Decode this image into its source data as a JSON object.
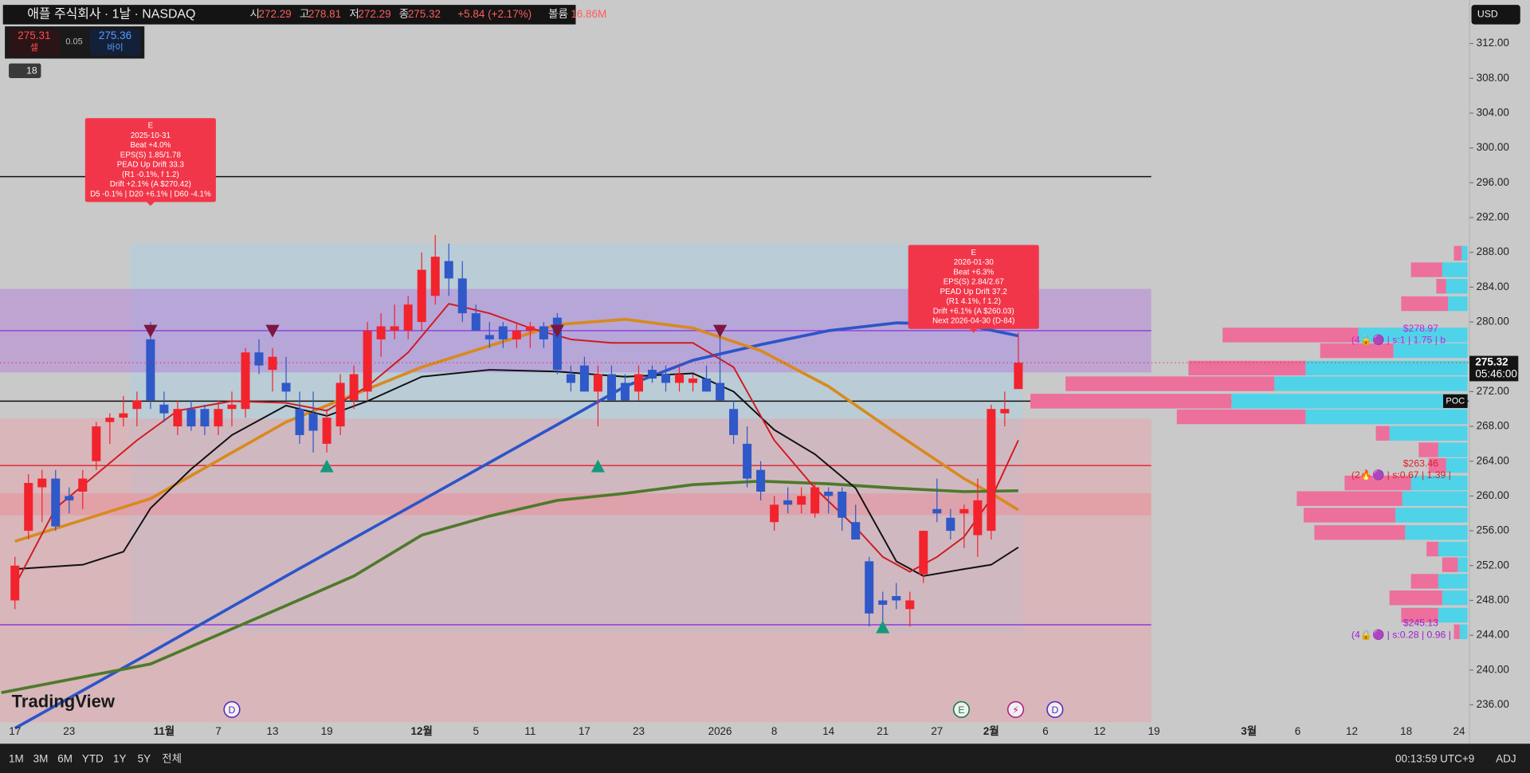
{
  "chart_data": {
    "type": "candlestick",
    "header": {
      "title": "애플 주식회사 · 1날 · NASDAQ",
      "ohlc": [
        [
          "시",
          "272.29"
        ],
        [
          "고",
          "278.81"
        ],
        [
          "저",
          "272.29"
        ],
        [
          "종",
          "275.32"
        ]
      ],
      "change": "+5.84 (+2.17%)",
      "volume_label": "볼륨",
      "volume": "16.86M",
      "bid": "275.31",
      "bid_label": "셀",
      "spread": "0.05",
      "ask": "275.36",
      "ask_label": "바이",
      "indicators_count": "18",
      "currency": "USD"
    },
    "xlim": [
      -1.1,
      107.2
    ],
    "ylim": [
      234,
      317
    ],
    "xticks": [
      {
        "value": 0,
        "label": "17"
      },
      {
        "value": 4,
        "label": "23"
      },
      {
        "value": 11,
        "label": "11월"
      },
      {
        "value": 15,
        "label": "7"
      },
      {
        "value": 19,
        "label": "13"
      },
      {
        "value": 23,
        "label": "19"
      },
      {
        "value": 30,
        "label": "12월"
      },
      {
        "value": 34,
        "label": "5"
      },
      {
        "value": 38,
        "label": "11"
      },
      {
        "value": 42,
        "label": "17"
      },
      {
        "value": 46,
        "label": "23"
      },
      {
        "value": 52,
        "label": "2026"
      },
      {
        "value": 56,
        "label": "8"
      },
      {
        "value": 60,
        "label": "14"
      },
      {
        "value": 64,
        "label": "21"
      },
      {
        "value": 68,
        "label": "27"
      },
      {
        "value": 72,
        "label": "2월"
      },
      {
        "value": 76,
        "label": "6"
      },
      {
        "value": 80,
        "label": "12"
      },
      {
        "value": 84,
        "label": "19"
      },
      {
        "value": 91,
        "label": "3월"
      },
      {
        "value": 94.6,
        "label": "6"
      },
      {
        "value": 98.6,
        "label": "12"
      },
      {
        "value": 102.6,
        "label": "18"
      },
      {
        "value": 106.5,
        "label": "24"
      }
    ],
    "yticks": [
      {
        "value": 312,
        "label": "312.00"
      },
      {
        "value": 308,
        "label": "308.00"
      },
      {
        "value": 304,
        "label": "304.00"
      },
      {
        "value": 300,
        "label": "300.00"
      },
      {
        "value": 296,
        "label": "296.00"
      },
      {
        "value": 292,
        "label": "292.00"
      },
      {
        "value": 288,
        "label": "288.00"
      },
      {
        "value": 284,
        "label": "284.00"
      },
      {
        "value": 280,
        "label": "280.00"
      },
      {
        "value": 272,
        "label": "272.00"
      },
      {
        "value": 268,
        "label": "268.00"
      },
      {
        "value": 264,
        "label": "264.00"
      },
      {
        "value": 260,
        "label": "260.00"
      },
      {
        "value": 256,
        "label": "256.00"
      },
      {
        "value": 252,
        "label": "252.00"
      },
      {
        "value": 248,
        "label": "248.00"
      },
      {
        "value": 244,
        "label": "244.00"
      },
      {
        "value": 240,
        "label": "240.00"
      },
      {
        "value": 236,
        "label": "236.00"
      }
    ],
    "up_color": "#f2232d",
    "down_color": "#2f58c8",
    "candles": {
      "open": [
        248,
        256,
        261,
        262,
        260,
        260.5,
        264,
        268.5,
        269,
        270,
        278,
        270.5,
        268,
        270,
        270,
        268,
        270,
        270,
        276.5,
        274.5,
        273,
        270,
        269.5,
        266,
        268,
        271,
        272,
        278,
        279,
        279,
        280,
        283,
        287,
        285,
        281,
        278.5,
        279.5,
        278,
        279,
        279.5,
        280.5,
        274,
        275,
        272,
        274,
        273,
        272,
        274.5,
        274,
        273,
        273,
        273.5,
        273,
        270,
        266,
        263,
        257,
        259.5,
        259,
        258,
        260.5,
        260.5,
        257,
        252.5,
        248,
        248.5,
        247,
        251,
        258.5,
        257.5,
        258,
        255.5,
        256,
        269.5,
        272.29
      ],
      "high": [
        253,
        262.5,
        263,
        263,
        261,
        263,
        268.5,
        269.5,
        271.5,
        272,
        280,
        272,
        271,
        271,
        270.5,
        271,
        272,
        277,
        278,
        277,
        276,
        272,
        272,
        270,
        274,
        275,
        280,
        281,
        282,
        283,
        288,
        290,
        289,
        287,
        282,
        280,
        280,
        280,
        280,
        280,
        281,
        275,
        276,
        275,
        275,
        274,
        275,
        275,
        275,
        275,
        274,
        275,
        279,
        271,
        268,
        264,
        260,
        261,
        261,
        261.5,
        261,
        261,
        259,
        253,
        249,
        250,
        249,
        256,
        262,
        258.5,
        259,
        262,
        270.5,
        272,
        278.81
      ],
      "low": [
        247,
        255,
        257,
        256,
        258,
        258.5,
        263,
        266,
        268,
        268,
        270,
        268.5,
        267,
        267.5,
        267,
        267,
        268,
        269,
        274,
        272,
        271,
        266,
        265,
        265,
        267,
        270,
        271,
        276,
        278,
        278,
        279,
        282,
        283,
        280,
        279,
        277,
        277,
        277,
        277,
        277,
        274,
        272,
        272,
        268,
        271,
        271,
        271,
        273,
        272,
        272,
        272,
        272,
        271,
        266,
        261,
        259.5,
        256,
        258,
        258,
        257.5,
        258,
        256,
        255,
        245,
        245.5,
        247,
        245,
        250,
        257,
        255,
        254,
        253,
        255,
        268,
        272.29
      ],
      "close": [
        252,
        261.5,
        262,
        256.5,
        259.5,
        262,
        268,
        269,
        269.5,
        271,
        271,
        269.5,
        270,
        268,
        268,
        270,
        270.5,
        276.5,
        275,
        276,
        272,
        267,
        267.5,
        269,
        273,
        274,
        279,
        279.5,
        279.5,
        282,
        286,
        287.5,
        285,
        281,
        279,
        278,
        278,
        279,
        279.5,
        278,
        274.5,
        273,
        272,
        274,
        271,
        271,
        274,
        273.5,
        273,
        274,
        273.5,
        272,
        271,
        267,
        262,
        260.5,
        259,
        259,
        260,
        261,
        260,
        257.5,
        255,
        246.5,
        247.5,
        248,
        248,
        256,
        258,
        256,
        258.5,
        259.5,
        270,
        270,
        275.32
      ]
    },
    "ma_lines": [
      {
        "color": "#2d55c9",
        "width": 3,
        "x": [
          0,
          10,
          20,
          30,
          40,
          45,
          50,
          55,
          60,
          65,
          70,
          74
        ],
        "values": [
          233.3,
          242,
          250.8,
          259.5,
          268.2,
          272.6,
          275.6,
          277.4,
          279,
          279.9,
          279.7,
          278.4
        ]
      },
      {
        "color": "#d88a1e",
        "width": 3,
        "x": [
          0,
          10,
          20,
          30,
          40,
          45,
          50,
          55,
          60,
          65,
          70,
          72,
          74
        ],
        "values": [
          254.8,
          259.7,
          268.5,
          274.8,
          279.7,
          280.3,
          279.3,
          276.7,
          272.6,
          267.2,
          262,
          260.3,
          258.4
        ]
      },
      {
        "color": "#4e7a2a",
        "width": 3,
        "x": [
          -1,
          10,
          20,
          25,
          30,
          35,
          40,
          45,
          50,
          55,
          60,
          65,
          70,
          74
        ],
        "values": [
          237.4,
          240.7,
          247.4,
          250.8,
          255.5,
          257.7,
          259.5,
          260.3,
          261.3,
          261.7,
          261.4,
          260.9,
          260.5,
          260.6
        ]
      },
      {
        "color": "#111111",
        "width": 1.6,
        "x": [
          0,
          5,
          8,
          10,
          13,
          16,
          20,
          23,
          26,
          30,
          35,
          40,
          45,
          50,
          53,
          56,
          59,
          62,
          65,
          67,
          70,
          72,
          74
        ],
        "values": [
          251.6,
          252.1,
          253.6,
          258.6,
          263.1,
          267,
          270.4,
          269.2,
          270.9,
          273.7,
          274.5,
          274.3,
          273.7,
          274.1,
          272,
          267.6,
          264.8,
          260.9,
          252.5,
          250.8,
          251.6,
          252.1,
          254.1
        ]
      },
      {
        "color": "#d01a22",
        "width": 1.6,
        "x": [
          0,
          3,
          6,
          9,
          12,
          16,
          20,
          23,
          26,
          29,
          32,
          35,
          38,
          41,
          44,
          47,
          50,
          53,
          56,
          59,
          62,
          64,
          66,
          68,
          70,
          72,
          74
        ],
        "values": [
          249.7,
          258.6,
          262.5,
          266.4,
          269.8,
          270.9,
          270.7,
          269.8,
          272.6,
          276.5,
          282.1,
          281,
          279.3,
          278,
          277.6,
          277.6,
          277.6,
          274.8,
          266.4,
          260.9,
          256.4,
          253,
          251.3,
          253,
          255.3,
          259.7,
          266.4
        ]
      }
    ],
    "zones": [
      {
        "from": 244.1,
        "to": 289,
        "x_from": 8.5,
        "x_to": 74.3,
        "color": "#a8d2e6"
      },
      {
        "from": 274.2,
        "to": 283.8,
        "x_from": -1.1,
        "x_to": 83.8,
        "color": "#b478dc"
      },
      {
        "from": 234,
        "to": 268.9,
        "x_from": -1.1,
        "x_to": 83.8,
        "color": "#eaa0a8"
      },
      {
        "from": 257.8,
        "to": 260.3,
        "x_from": -1.1,
        "x_to": 83.8,
        "color": "#ee8790"
      }
    ],
    "levels": [
      {
        "value": 296.7,
        "x_to": 83.8,
        "color": "#111111"
      },
      {
        "value": 270.9,
        "x_to": 107.2,
        "color": "#111111"
      },
      {
        "value": 263.5,
        "x_to": 83.8,
        "color": "#e0202a"
      },
      {
        "value": 279,
        "x_to": 83.8,
        "color": "#8a3ce0"
      },
      {
        "value": 245.2,
        "x_to": 83.8,
        "color": "#8a3ce0"
      }
    ],
    "volume_profile": {
      "buy_color": "#4fd3e8",
      "sell_color": "#ec6f9c",
      "rows": [
        {
          "price": 287.9,
          "buy": 6,
          "sell": 8
        },
        {
          "price": 286.0,
          "buy": 26,
          "sell": 32
        },
        {
          "price": 284.1,
          "buy": 22,
          "sell": 10
        },
        {
          "price": 282.1,
          "buy": 20,
          "sell": 48
        },
        {
          "price": 278.5,
          "buy": 112,
          "sell": 139
        },
        {
          "price": 276.7,
          "buy": 76,
          "sell": 75
        },
        {
          "price": 274.7,
          "buy": 166,
          "sell": 120
        },
        {
          "price": 272.9,
          "buy": 198,
          "sell": 214
        },
        {
          "price": 270.9,
          "buy": 242,
          "sell": 206
        },
        {
          "price": 269.1,
          "buy": 166,
          "sell": 132
        },
        {
          "price": 267.2,
          "buy": 80,
          "sell": 14
        },
        {
          "price": 265.3,
          "buy": 30,
          "sell": 20
        },
        {
          "price": 263.5,
          "buy": 22,
          "sell": 18
        },
        {
          "price": 261.5,
          "buy": 58,
          "sell": 68
        },
        {
          "price": 259.7,
          "buy": 67,
          "sell": 108
        },
        {
          "price": 257.8,
          "buy": 74,
          "sell": 94
        },
        {
          "price": 255.8,
          "buy": 64,
          "sell": 93
        },
        {
          "price": 253.9,
          "buy": 30,
          "sell": 12
        },
        {
          "price": 252.1,
          "buy": 10,
          "sell": 16
        },
        {
          "price": 250.2,
          "buy": 30,
          "sell": 28
        },
        {
          "price": 248.3,
          "buy": 26,
          "sell": 54
        },
        {
          "price": 246.3,
          "buy": 30,
          "sell": 38
        },
        {
          "price": 244.4,
          "buy": 8,
          "sell": 6
        }
      ]
    },
    "poc_label": "POC",
    "signals_down": {
      "color": "#7d1640",
      "x": [
        10,
        19,
        40,
        52
      ],
      "values": [
        279,
        279,
        279,
        279
      ]
    },
    "signals_up": {
      "color": "#149a78",
      "x": [
        23,
        43,
        64
      ],
      "values": [
        263.4,
        263.4,
        244.9
      ]
    },
    "last_price": {
      "value": 275.32,
      "label": "275.32",
      "countdown": "05:46:00"
    },
    "earnings": [
      {
        "x": 10,
        "lines": [
          "E",
          "2025-10-31",
          "Beat +4.0%",
          "EPS(S) 1.85/1.78",
          "PEAD Up Drift 33.3",
          "(R1 -0.1%, f 1.2)",
          "Drift +2.1% (A $270.42)",
          "D5 -0.1% | D20 +6.1% | D60 -4.1%"
        ]
      },
      {
        "x": 70.7,
        "lines": [
          "E",
          "2026-01-30",
          "Beat +6.3%",
          "EPS(S) 2.84/2.67",
          "PEAD Up Drift 37.2",
          "(R1 4.1%, f 1.2)",
          "Drift +6.1% (A $260.03)",
          "Next 2026-04-30 (D-84)"
        ]
      }
    ],
    "price_notes": [
      {
        "price": 278.97,
        "label": "$278.97",
        "detail": "(4🔒🟣 | s:1 | 1.75 | b",
        "color": "#c026d3"
      },
      {
        "price": 263.46,
        "label": "$263.46",
        "detail": "(2🔥🟣 | s:0.67 | 1.39 |",
        "color": "#e0202a"
      },
      {
        "price": 245.13,
        "label": "$245.13",
        "detail": "(4🔒🟣 | s:0.28 | 0.96 |",
        "color": "#a020d0"
      }
    ],
    "events": [
      {
        "x": 16,
        "label": "D",
        "color": "#5b2dbd"
      },
      {
        "x": 69.8,
        "label": "E",
        "color": "#1f7a4a"
      },
      {
        "x": 73.8,
        "label": "⚡",
        "color": "#b0208a"
      },
      {
        "x": 76.7,
        "label": "D",
        "color": "#5b2dbd"
      }
    ],
    "logo": "TradingView",
    "toolbar": {
      "ranges": [
        "1M",
        "3M",
        "6M",
        "YTD",
        "1Y",
        "5Y",
        "전체"
      ],
      "clock": "00:13:59 UTC+9",
      "adj": "ADJ"
    }
  }
}
